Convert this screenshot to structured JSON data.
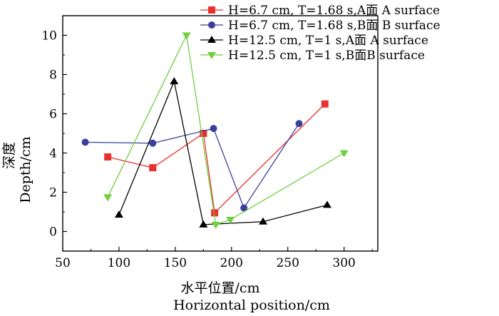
{
  "chart_data": {
    "type": "line",
    "title": "",
    "xlabel_cn": "水平位置/cm",
    "xlabel_en": "Horizontal position/cm",
    "ylabel_cn": "深度",
    "ylabel_en": "Depth/cm",
    "xlim": [
      50,
      330
    ],
    "ylim": [
      -1,
      11
    ],
    "xticks": [
      50,
      100,
      150,
      200,
      250,
      300
    ],
    "yticks": [
      0,
      2,
      4,
      6,
      8,
      10
    ],
    "grid": false,
    "legend_position": "top-right",
    "series": [
      {
        "name": "H=6.7 cm, T=1.68 s,A面 A surface",
        "color": "#e8312f",
        "marker": "square",
        "points": [
          [
            90,
            3.8
          ],
          [
            130,
            3.25
          ],
          [
            175,
            5.0
          ],
          [
            185,
            0.95
          ],
          [
            283,
            6.5
          ]
        ]
      },
      {
        "name": "H=6.7 cm, T=1.68 s,B面 B surface",
        "color": "#3b3f9c",
        "marker": "circle",
        "points": [
          [
            70,
            4.55
          ],
          [
            130,
            4.5
          ],
          [
            184,
            5.25
          ],
          [
            211,
            1.2
          ],
          [
            260,
            5.5
          ]
        ]
      },
      {
        "name": "H=12.5 cm, T=1 s,A面 A surface",
        "color": "#000000",
        "marker": "triangle-up",
        "points": [
          [
            100,
            0.85
          ],
          [
            149,
            7.65
          ],
          [
            175,
            0.35
          ],
          [
            228,
            0.5
          ],
          [
            285,
            1.35
          ]
        ]
      },
      {
        "name": "H=12.5 cm, T=1 s,B面B surface",
        "color": "#6fcf3f",
        "marker": "triangle-down",
        "points": [
          [
            90,
            1.75
          ],
          [
            160,
            10.0
          ],
          [
            186,
            0.35
          ],
          [
            199,
            0.6
          ],
          [
            300,
            4.0
          ]
        ]
      }
    ]
  }
}
